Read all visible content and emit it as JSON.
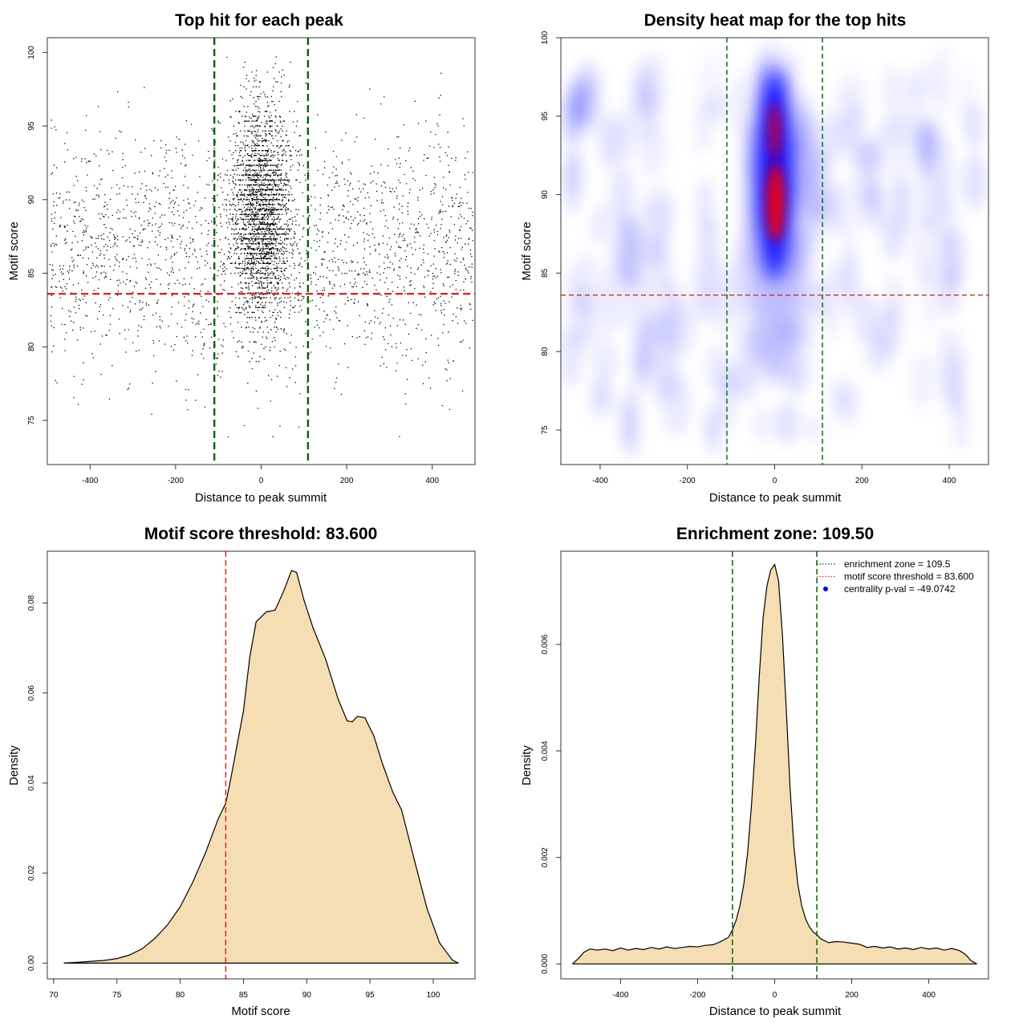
{
  "chart_data": [
    {
      "id": "scatter",
      "type": "scatter",
      "title": "Top hit for each peak",
      "xlabel": "Distance to peak summit",
      "ylabel": "Motif score",
      "xlim": [
        -500,
        500
      ],
      "ylim": [
        72,
        101
      ],
      "xticks": [
        -400,
        -200,
        0,
        200,
        400
      ],
      "yticks": [
        75,
        80,
        85,
        90,
        95,
        100
      ],
      "hlines": [
        {
          "value": 83.6,
          "color": "#d62728"
        }
      ],
      "vlines": [
        {
          "value": -109.5,
          "color": "#006400"
        },
        {
          "value": 109.5,
          "color": "#006400"
        }
      ],
      "point_color": "#000000",
      "grid": false
    },
    {
      "id": "heatmap",
      "type": "heatmap",
      "title": "Density heat map for the top hits",
      "xlabel": "Distance to peak summit",
      "ylabel": "Motif score",
      "xlim": [
        -490,
        490
      ],
      "ylim": [
        72.8,
        100
      ],
      "xticks": [
        -400,
        -200,
        0,
        200,
        400
      ],
      "yticks": [
        75,
        80,
        85,
        90,
        95,
        100
      ],
      "hlines": [
        {
          "value": 83.6,
          "color": "#d62728"
        }
      ],
      "vlines": [
        {
          "value": -109.5,
          "color": "#006400"
        },
        {
          "value": 109.5,
          "color": "#006400"
        }
      ],
      "colors": [
        "#ffffff",
        "#0000ff",
        "#ff0000"
      ],
      "grid": false
    },
    {
      "id": "score-density",
      "type": "area",
      "title": "Motif score threshold: 83.600",
      "xlabel": "Motif score",
      "ylabel": "Density",
      "xlim": [
        69.5,
        103.3
      ],
      "ylim": [
        -0.0035,
        0.0915
      ],
      "xticks": [
        70,
        75,
        80,
        85,
        90,
        95,
        100
      ],
      "yticks": [
        0.0,
        0.02,
        0.04,
        0.06,
        0.08
      ],
      "ytick_labels": [
        "0.00",
        "0.02",
        "0.04",
        "0.06",
        "0.08"
      ],
      "vlines": [
        {
          "value": 83.6,
          "color": "#d62728"
        }
      ],
      "fill_color": "#f5deb3",
      "x": [
        70.8,
        72,
        74,
        75,
        76,
        77,
        78,
        79,
        80,
        81,
        82,
        83,
        83.6,
        84,
        85,
        85.5,
        86,
        86.8,
        87.5,
        88.2,
        88.8,
        89.2,
        89.8,
        90.5,
        91.5,
        92.5,
        93.2,
        93.6,
        94,
        94.6,
        95.3,
        96,
        96.8,
        97.5,
        98.5,
        99.5,
        100.5,
        101.5,
        102
      ],
      "y": [
        0.0,
        0.0002,
        0.0006,
        0.001,
        0.0018,
        0.0032,
        0.0055,
        0.0085,
        0.0125,
        0.018,
        0.0245,
        0.032,
        0.0355,
        0.041,
        0.056,
        0.068,
        0.0758,
        0.078,
        0.0784,
        0.0828,
        0.0872,
        0.0868,
        0.0805,
        0.0745,
        0.0675,
        0.0585,
        0.0538,
        0.0536,
        0.0548,
        0.0545,
        0.0505,
        0.0442,
        0.038,
        0.034,
        0.023,
        0.0122,
        0.0045,
        0.0007,
        0.0
      ],
      "grid": false
    },
    {
      "id": "distance-density",
      "type": "area",
      "title": "Enrichment zone: 109.50",
      "xlabel": "Distance to peak summit",
      "ylabel": "Density",
      "xlim": [
        -555,
        555
      ],
      "ylim": [
        -0.00028,
        0.00775
      ],
      "xticks": [
        -400,
        -200,
        0,
        200,
        400
      ],
      "yticks": [
        0.0,
        0.002,
        0.004,
        0.006
      ],
      "ytick_labels": [
        "0.000",
        "0.002",
        "0.004",
        "0.006"
      ],
      "vlines": [
        {
          "value": -109.5,
          "color": "#006400"
        },
        {
          "value": 109.5,
          "color": "#006400"
        }
      ],
      "fill_color": "#f5deb3",
      "legend_position": "top-right",
      "legend": [
        {
          "label": "enrichment zone = 109.5",
          "color": "#006400",
          "style": "dotted-line"
        },
        {
          "label": "motif score threshold = 83.600",
          "color": "#d62728",
          "style": "dotted-line"
        },
        {
          "label": "centrality p-val = -49.0742",
          "color": "#0000ff",
          "style": "dot"
        }
      ],
      "x": [
        -525,
        -510,
        -495,
        -480,
        -460,
        -440,
        -420,
        -400,
        -380,
        -360,
        -340,
        -320,
        -300,
        -280,
        -260,
        -240,
        -220,
        -200,
        -180,
        -160,
        -140,
        -120,
        -109.5,
        -100,
        -90,
        -80,
        -70,
        -60,
        -50,
        -40,
        -30,
        -20,
        -10,
        0,
        10,
        20,
        30,
        40,
        50,
        60,
        70,
        80,
        90,
        100,
        109.5,
        120,
        140,
        160,
        180,
        200,
        220,
        240,
        260,
        280,
        300,
        320,
        340,
        360,
        380,
        400,
        420,
        440,
        460,
        480,
        495,
        510,
        525
      ],
      "y": [
        0.0,
        0.0001,
        0.00022,
        0.00028,
        0.00026,
        0.00028,
        0.00025,
        0.0003,
        0.00026,
        0.00029,
        0.00027,
        0.00031,
        0.00028,
        0.00032,
        0.00029,
        0.00031,
        0.00033,
        0.00032,
        0.00035,
        0.00036,
        0.00042,
        0.0005,
        0.00064,
        0.00082,
        0.0011,
        0.0015,
        0.0021,
        0.003,
        0.0041,
        0.0054,
        0.0065,
        0.0071,
        0.0074,
        0.0075,
        0.0072,
        0.0062,
        0.0048,
        0.0033,
        0.0022,
        0.0015,
        0.0011,
        0.00085,
        0.0007,
        0.0006,
        0.00055,
        0.00047,
        0.0004,
        0.00042,
        0.00041,
        0.00039,
        0.00037,
        0.00031,
        0.00033,
        0.0003,
        0.00032,
        0.00028,
        0.0003,
        0.00027,
        0.00031,
        0.00028,
        0.0003,
        0.00026,
        0.00029,
        0.00025,
        0.00018,
        6e-05,
        0.0
      ],
      "grid": false
    }
  ]
}
